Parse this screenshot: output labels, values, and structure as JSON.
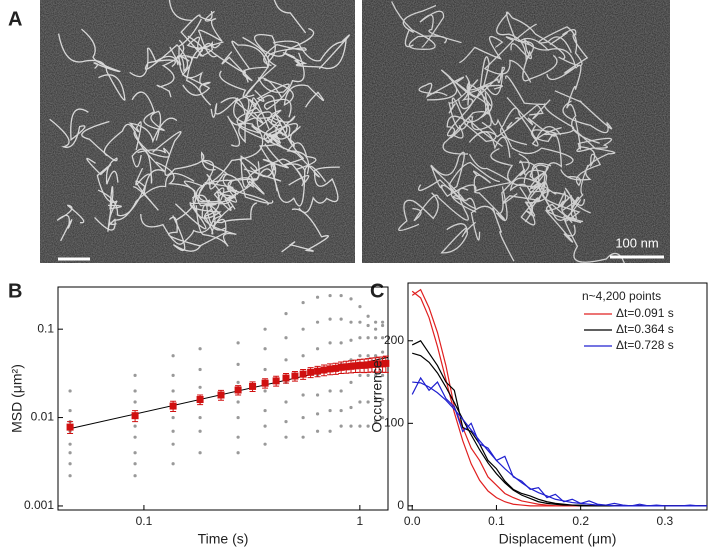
{
  "panels": {
    "a": "A",
    "b": "B",
    "c": "C"
  },
  "scale_bar": "100 nm",
  "chart_data": [
    {
      "type": "scatter",
      "x_label": "Time (s)",
      "y_label": "MSD (μm²)",
      "xscale": "log",
      "yscale": "log",
      "xlim": [
        0.04,
        1.35
      ],
      "ylim": [
        0.0009,
        0.3
      ],
      "xticks": [
        0.1,
        1
      ],
      "yticks": [
        0.001,
        0.01,
        0.1
      ],
      "points": {
        "color": "#999999",
        "x": [
          0.0455,
          0.0455,
          0.0455,
          0.0455,
          0.0455,
          0.0455,
          0.0455,
          0.0455,
          0.091,
          0.091,
          0.091,
          0.091,
          0.091,
          0.091,
          0.091,
          0.091,
          0.091,
          0.1365,
          0.1365,
          0.1365,
          0.1365,
          0.1365,
          0.1365,
          0.1365,
          0.1365,
          0.182,
          0.182,
          0.182,
          0.182,
          0.182,
          0.182,
          0.182,
          0.273,
          0.273,
          0.273,
          0.273,
          0.273,
          0.273,
          0.273,
          0.364,
          0.364,
          0.364,
          0.364,
          0.364,
          0.364,
          0.364,
          0.455,
          0.455,
          0.455,
          0.455,
          0.455,
          0.455,
          0.455,
          0.546,
          0.546,
          0.546,
          0.546,
          0.546,
          0.546,
          0.546,
          0.637,
          0.637,
          0.637,
          0.637,
          0.637,
          0.637,
          0.637,
          0.728,
          0.728,
          0.728,
          0.728,
          0.728,
          0.728,
          0.728,
          0.819,
          0.819,
          0.819,
          0.819,
          0.819,
          0.819,
          0.819,
          0.91,
          0.91,
          0.91,
          0.91,
          0.91,
          0.91,
          0.91,
          1.001,
          1.001,
          1.001,
          1.001,
          1.001,
          1.001,
          1.001,
          1.092,
          1.092,
          1.092,
          1.092,
          1.092,
          1.092,
          1.092,
          1.183,
          1.183,
          1.183,
          1.183,
          1.183,
          1.183,
          1.183,
          1.274,
          1.274,
          1.274,
          1.274,
          1.274,
          1.274,
          1.274
        ],
        "values": [
          0.02,
          0.012,
          0.009,
          0.007,
          0.005,
          0.004,
          0.003,
          0.0022,
          0.03,
          0.02,
          0.015,
          0.011,
          0.008,
          0.006,
          0.004,
          0.003,
          0.0022,
          0.05,
          0.03,
          0.02,
          0.014,
          0.01,
          0.007,
          0.005,
          0.003,
          0.06,
          0.035,
          0.022,
          0.015,
          0.01,
          0.007,
          0.004,
          0.07,
          0.04,
          0.025,
          0.015,
          0.01,
          0.006,
          0.004,
          0.1,
          0.06,
          0.035,
          0.02,
          0.012,
          0.008,
          0.005,
          0.15,
          0.08,
          0.045,
          0.025,
          0.015,
          0.009,
          0.006,
          0.2,
          0.1,
          0.05,
          0.03,
          0.018,
          0.01,
          0.006,
          0.23,
          0.12,
          0.06,
          0.03,
          0.018,
          0.011,
          0.007,
          0.24,
          0.13,
          0.07,
          0.035,
          0.02,
          0.012,
          0.007,
          0.24,
          0.13,
          0.07,
          0.04,
          0.02,
          0.012,
          0.008,
          0.22,
          0.12,
          0.075,
          0.045,
          0.025,
          0.013,
          0.008,
          0.18,
          0.12,
          0.08,
          0.05,
          0.03,
          0.015,
          0.008,
          0.14,
          0.11,
          0.08,
          0.05,
          0.03,
          0.015,
          0.008,
          0.12,
          0.1,
          0.08,
          0.05,
          0.03,
          0.016,
          0.009,
          0.12,
          0.11,
          0.08,
          0.055,
          0.03,
          0.016,
          0.01
        ]
      },
      "fit": {
        "color": "#000000",
        "x": [
          0.0455,
          1.35
        ],
        "values": [
          0.0075,
          0.048
        ]
      },
      "mean": {
        "color": "#d01010",
        "x": [
          0.0455,
          0.091,
          0.1365,
          0.182,
          0.2275,
          0.273,
          0.3185,
          0.364,
          0.4095,
          0.455,
          0.5005,
          0.546,
          0.5915,
          0.637,
          0.6825,
          0.728,
          0.7735,
          0.819,
          0.8645,
          0.91,
          0.9555,
          1.001,
          1.0465,
          1.092,
          1.1375,
          1.183,
          1.2285,
          1.274,
          1.3195
        ],
        "values": [
          0.0078,
          0.0105,
          0.0135,
          0.016,
          0.018,
          0.0205,
          0.0225,
          0.0245,
          0.026,
          0.028,
          0.0295,
          0.031,
          0.0325,
          0.0335,
          0.0345,
          0.0355,
          0.036,
          0.037,
          0.0375,
          0.038,
          0.0385,
          0.039,
          0.039,
          0.0395,
          0.04,
          0.04,
          0.0405,
          0.0405,
          0.041
        ],
        "errors": [
          0.0012,
          0.0015,
          0.0018,
          0.002,
          0.0023,
          0.0025,
          0.0028,
          0.003,
          0.0033,
          0.0035,
          0.0037,
          0.004,
          0.0042,
          0.0045,
          0.0048,
          0.005,
          0.0052,
          0.0055,
          0.0058,
          0.006,
          0.0062,
          0.0065,
          0.0068,
          0.007,
          0.0072,
          0.0075,
          0.0078,
          0.008,
          0.0085
        ]
      }
    },
    {
      "type": "line",
      "x_label": "Displacement (μm)",
      "y_label": "Occurrence",
      "xlim": [
        -0.005,
        0.35
      ],
      "ylim": [
        -5,
        270
      ],
      "xticks": [
        {
          "value": 0,
          "label": "0.0"
        },
        0.1,
        0.2,
        0.3
      ],
      "yticks": [
        0,
        100,
        200
      ],
      "legend_title": "n~4,200 points",
      "legend": "top-right",
      "x": [
        0,
        0.01,
        0.02,
        0.03,
        0.04,
        0.05,
        0.06,
        0.07,
        0.08,
        0.09,
        0.1,
        0.11,
        0.12,
        0.13,
        0.14,
        0.15,
        0.16,
        0.17,
        0.18,
        0.19,
        0.2,
        0.21,
        0.22,
        0.23,
        0.24,
        0.25,
        0.26,
        0.27,
        0.28,
        0.29,
        0.3,
        0.31,
        0.32,
        0.33,
        0.34,
        0.35
      ],
      "series": [
        {
          "name": "Δt=0.091 s",
          "color": "#e02020",
          "values": [
            255,
            262,
            240,
            210,
            170,
            120,
            95,
            70,
            55,
            35,
            25,
            15,
            10,
            6,
            4,
            2,
            1,
            0,
            0,
            0,
            0,
            0,
            0,
            0,
            0,
            0,
            0,
            0,
            0,
            0,
            0,
            0,
            0,
            0,
            0,
            0
          ],
          "fit": [
            260,
            252,
            228,
            193,
            153,
            113,
            79,
            51,
            31,
            18,
            10,
            5,
            2,
            1,
            0,
            0,
            0,
            0,
            0,
            0,
            0,
            0,
            0,
            0,
            0,
            0,
            0,
            0,
            0,
            0,
            0,
            0,
            0,
            0,
            0,
            0
          ]
        },
        {
          "name": "Δt=0.364 s",
          "color": "#000000",
          "values": [
            195,
            200,
            185,
            170,
            150,
            140,
            95,
            90,
            75,
            55,
            45,
            30,
            20,
            15,
            12,
            8,
            5,
            3,
            2,
            1,
            1,
            0,
            0,
            0,
            0,
            0,
            0,
            0,
            0,
            0,
            0,
            0,
            0,
            0,
            0,
            0
          ],
          "fit": [
            185,
            182,
            174,
            161,
            144,
            125,
            105,
            86,
            68,
            52,
            39,
            28,
            19,
            13,
            9,
            5,
            3,
            2,
            1,
            1,
            0,
            0,
            0,
            0,
            0,
            0,
            0,
            0,
            0,
            0,
            0,
            0,
            0,
            0,
            0,
            0
          ]
        },
        {
          "name": "Δt=0.728 s",
          "color": "#2020d0",
          "values": [
            135,
            155,
            140,
            150,
            130,
            120,
            90,
            100,
            75,
            70,
            55,
            60,
            35,
            30,
            20,
            22,
            10,
            14,
            5,
            8,
            3,
            6,
            2,
            1,
            3,
            1,
            0,
            2,
            0,
            1,
            0,
            0,
            0,
            1,
            0,
            0
          ],
          "fit": [
            150,
            149,
            144,
            137,
            128,
            117,
            105,
            92,
            79,
            67,
            55,
            45,
            36,
            28,
            21,
            16,
            12,
            8,
            6,
            4,
            3,
            2,
            1,
            1,
            0,
            0,
            0,
            0,
            0,
            0,
            0,
            0,
            0,
            0,
            0,
            0
          ]
        }
      ]
    }
  ]
}
